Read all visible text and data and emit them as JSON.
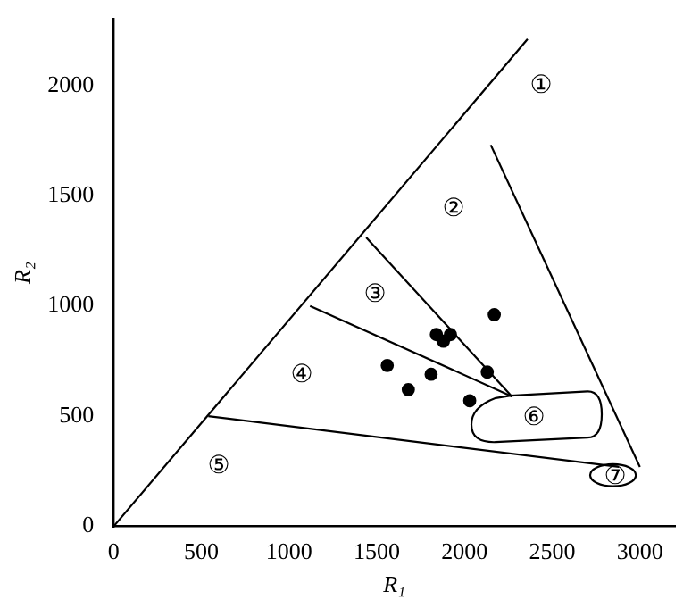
{
  "chart_data": {
    "type": "scatter",
    "xlabel": "R₁",
    "ylabel": "R₂",
    "xlim": [
      0,
      3200
    ],
    "ylim": [
      0,
      2300
    ],
    "xticks": [
      0,
      500,
      1000,
      1500,
      2000,
      2500,
      3000
    ],
    "yticks": [
      0,
      500,
      1000,
      1500,
      2000
    ],
    "grid": false,
    "legend": false,
    "series": [
      {
        "marker": "circle",
        "color": "#000000",
        "x": [
          1840,
          1880,
          1920,
          1560,
          1680,
          1810,
          2030,
          2130,
          2170
        ],
        "values": [
          870,
          840,
          870,
          730,
          620,
          690,
          570,
          700,
          960
        ]
      },
      {
        "type": "line",
        "marker": "none",
        "color": "#000000",
        "x": [
          0,
          2360
        ],
        "values": [
          0,
          2210
        ]
      },
      {
        "type": "line",
        "marker": "none",
        "color": "#000000",
        "x": [
          540,
          2880
        ],
        "values": [
          500,
          270
        ]
      },
      {
        "type": "line",
        "marker": "none",
        "color": "#000000",
        "x": [
          1120,
          2270
        ],
        "values": [
          1000,
          590
        ]
      },
      {
        "type": "line",
        "marker": "none",
        "color": "#000000",
        "x": [
          1440,
          2270
        ],
        "values": [
          1310,
          590
        ]
      },
      {
        "type": "line",
        "marker": "none",
        "color": "#000000",
        "x": [
          2150,
          3000
        ],
        "values": [
          1730,
          270
        ]
      }
    ],
    "annotations": [
      "①",
      "②",
      "③",
      "④",
      "⑤",
      "⑥",
      "⑦"
    ]
  }
}
